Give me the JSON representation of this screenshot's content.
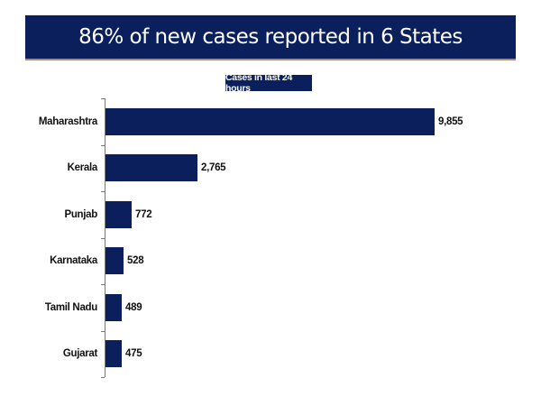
{
  "header": {
    "title": "86% of new cases reported in 6 States",
    "background": "#0a1f5c",
    "underline": "#b08a6a"
  },
  "subtitle": "Cases in last 24 hours",
  "chart_data": {
    "type": "bar",
    "orientation": "horizontal",
    "title": "86% of new cases reported in 6 States",
    "subtitle": "Cases in last 24 hours",
    "categories": [
      "Maharashtra",
      "Kerala",
      "Punjab",
      "Karnataka",
      "Tamil Nadu",
      "Gujarat"
    ],
    "values": [
      9855,
      2765,
      772,
      528,
      489,
      475
    ],
    "value_labels": [
      "9,855",
      "2,765",
      "772",
      "528",
      "489",
      "475"
    ],
    "bar_color": "#0a1f5c",
    "xlabel": "",
    "ylabel": "",
    "grid": false,
    "legend": null,
    "xlim": [
      0,
      10000
    ]
  }
}
